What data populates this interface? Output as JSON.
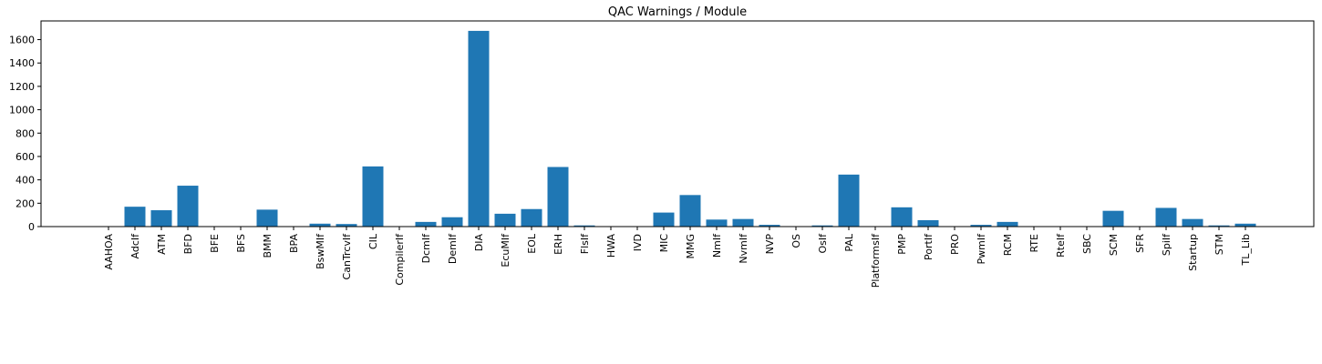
{
  "chart_data": {
    "type": "bar",
    "title": "QAC Warnings / Module",
    "xlabel": "",
    "ylabel": "",
    "ylim": [
      0,
      1760
    ],
    "yticks": [
      0,
      200,
      400,
      600,
      800,
      1000,
      1200,
      1400,
      1600
    ],
    "grid": false,
    "color": "#1f77b4",
    "categories": [
      "AAHOA",
      "AdcIf",
      "ATM",
      "BFD",
      "BFE",
      "BFS",
      "BMM",
      "BPA",
      "BswMIf",
      "CanTrcvIf",
      "CIL",
      "CompilerIf",
      "DcmIf",
      "DemIf",
      "DIA",
      "EcuMIf",
      "EOL",
      "ERH",
      "FlsIf",
      "HWA",
      "IVD",
      "MIC",
      "MMG",
      "NmIf",
      "NvmIf",
      "NVP",
      "OS",
      "OsIf",
      "PAL",
      "PlatformsIf",
      "PMP",
      "PortIf",
      "PRO",
      "PwmIf",
      "RCM",
      "RTE",
      "RteIf",
      "SBC",
      "SCM",
      "SFR",
      "SpiIf",
      "Startup",
      "STM",
      "TL_Lib"
    ],
    "values": [
      0,
      170,
      140,
      350,
      0,
      0,
      145,
      0,
      25,
      22,
      515,
      0,
      40,
      80,
      1675,
      110,
      150,
      510,
      10,
      0,
      0,
      120,
      270,
      60,
      65,
      15,
      0,
      10,
      445,
      0,
      165,
      55,
      0,
      15,
      40,
      0,
      0,
      0,
      135,
      0,
      160,
      65,
      10,
      25
    ]
  }
}
